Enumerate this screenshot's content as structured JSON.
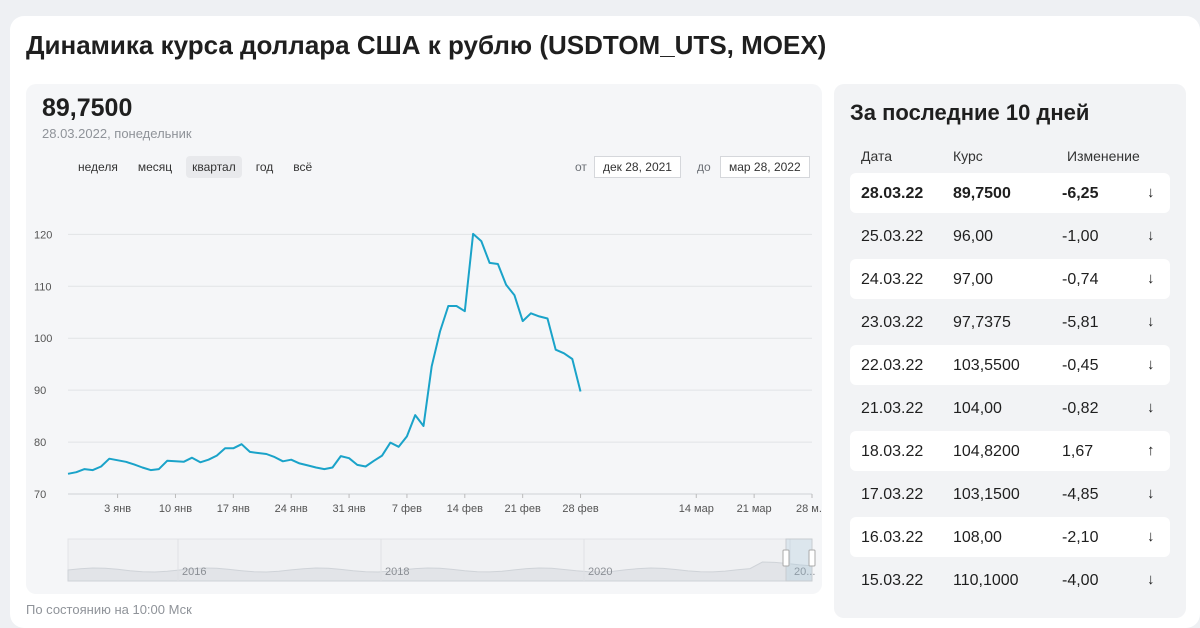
{
  "title": "Динамика курса доллара США к рублю (USDTOM_UTS, MOEX)",
  "current": {
    "value": "89,7500",
    "date": "28.03.2022, понедельник"
  },
  "periods": [
    {
      "label": "неделя",
      "active": false
    },
    {
      "label": "месяц",
      "active": false
    },
    {
      "label": "квартал",
      "active": true
    },
    {
      "label": "год",
      "active": false
    },
    {
      "label": "всё",
      "active": false
    }
  ],
  "range": {
    "from_label": "от",
    "from_value": "дек 28, 2021",
    "to_label": "до",
    "to_value": "мар 28, 2022"
  },
  "footnote": "По состоянию на 10:00 Мск",
  "chart_data": {
    "type": "line",
    "series_color": "#1aa3c9",
    "grid": true,
    "ylim": [
      70,
      122
    ],
    "yticks": [
      70,
      80,
      90,
      100,
      110,
      120
    ],
    "xlim": [
      0,
      90
    ],
    "xticks": [
      {
        "label": "3 янв",
        "day": 6
      },
      {
        "label": "10 янв",
        "day": 13
      },
      {
        "label": "17 янв",
        "day": 20
      },
      {
        "label": "24 янв",
        "day": 27
      },
      {
        "label": "31 янв",
        "day": 34
      },
      {
        "label": "7 фев",
        "day": 41
      },
      {
        "label": "14 фев",
        "day": 48
      },
      {
        "label": "21 фев",
        "day": 55
      },
      {
        "label": "28 фев",
        "day": 62
      },
      {
        "label": "14 мар",
        "day": 76
      },
      {
        "label": "21 мар",
        "day": 83
      },
      {
        "label": "28 м...",
        "day": 90
      }
    ],
    "points": [
      {
        "day": 0,
        "value": 73.9
      },
      {
        "day": 1,
        "value": 74.2
      },
      {
        "day": 2,
        "value": 74.8
      },
      {
        "day": 3,
        "value": 74.6
      },
      {
        "day": 4,
        "value": 75.3
      },
      {
        "day": 5,
        "value": 76.8
      },
      {
        "day": 7,
        "value": 76.2
      },
      {
        "day": 8,
        "value": 75.7
      },
      {
        "day": 9,
        "value": 75.1
      },
      {
        "day": 10,
        "value": 74.6
      },
      {
        "day": 11,
        "value": 74.8
      },
      {
        "day": 12,
        "value": 76.4
      },
      {
        "day": 14,
        "value": 76.2
      },
      {
        "day": 15,
        "value": 77.0
      },
      {
        "day": 16,
        "value": 76.1
      },
      {
        "day": 17,
        "value": 76.6
      },
      {
        "day": 18,
        "value": 77.4
      },
      {
        "day": 19,
        "value": 78.8
      },
      {
        "day": 20,
        "value": 78.8
      },
      {
        "day": 21,
        "value": 79.6
      },
      {
        "day": 22,
        "value": 78.1
      },
      {
        "day": 23,
        "value": 77.9
      },
      {
        "day": 24,
        "value": 77.7
      },
      {
        "day": 25,
        "value": 77.1
      },
      {
        "day": 26,
        "value": 76.3
      },
      {
        "day": 27,
        "value": 76.6
      },
      {
        "day": 28,
        "value": 75.9
      },
      {
        "day": 29,
        "value": 75.5
      },
      {
        "day": 30,
        "value": 75.1
      },
      {
        "day": 31,
        "value": 74.8
      },
      {
        "day": 32,
        "value": 75.1
      },
      {
        "day": 33,
        "value": 77.3
      },
      {
        "day": 34,
        "value": 76.9
      },
      {
        "day": 35,
        "value": 75.6
      },
      {
        "day": 36,
        "value": 75.3
      },
      {
        "day": 37,
        "value": 76.4
      },
      {
        "day": 38,
        "value": 77.4
      },
      {
        "day": 39,
        "value": 79.9
      },
      {
        "day": 40,
        "value": 79.1
      },
      {
        "day": 41,
        "value": 81.1
      },
      {
        "day": 42,
        "value": 85.2
      },
      {
        "day": 43,
        "value": 83.1
      },
      {
        "day": 44,
        "value": 94.6
      },
      {
        "day": 45,
        "value": 101.3
      },
      {
        "day": 46,
        "value": 106.2
      },
      {
        "day": 47,
        "value": 106.2
      },
      {
        "day": 48,
        "value": 105.2
      },
      {
        "day": 49,
        "value": 120.1
      },
      {
        "day": 50,
        "value": 118.7
      },
      {
        "day": 51,
        "value": 114.5
      },
      {
        "day": 52,
        "value": 114.3
      },
      {
        "day": 53,
        "value": 110.3
      },
      {
        "day": 54,
        "value": 108.3
      },
      {
        "day": 55,
        "value": 103.3
      },
      {
        "day": 56,
        "value": 104.8
      },
      {
        "day": 57,
        "value": 104.2
      },
      {
        "day": 58,
        "value": 103.8
      },
      {
        "day": 59,
        "value": 97.8
      },
      {
        "day": 60,
        "value": 97.1
      },
      {
        "day": 61,
        "value": 96.0
      },
      {
        "day": 62,
        "value": 89.75
      }
    ],
    "navigator": {
      "labels": [
        "2016",
        "2018",
        "2020",
        "20..."
      ]
    }
  },
  "side": {
    "title": "За последние 10 дней",
    "columns": [
      "Дата",
      "Курс",
      "Изменение"
    ],
    "rows": [
      {
        "date": "28.03.22",
        "rate": "89,7500",
        "change": "-6,25",
        "dir": "down",
        "arrow": "↓"
      },
      {
        "date": "25.03.22",
        "rate": "96,00",
        "change": "-1,00",
        "dir": "down",
        "arrow": "↓"
      },
      {
        "date": "24.03.22",
        "rate": "97,00",
        "change": "-0,74",
        "dir": "down",
        "arrow": "↓"
      },
      {
        "date": "23.03.22",
        "rate": "97,7375",
        "change": "-5,81",
        "dir": "down",
        "arrow": "↓"
      },
      {
        "date": "22.03.22",
        "rate": "103,5500",
        "change": "-0,45",
        "dir": "down",
        "arrow": "↓"
      },
      {
        "date": "21.03.22",
        "rate": "104,00",
        "change": "-0,82",
        "dir": "down",
        "arrow": "↓"
      },
      {
        "date": "18.03.22",
        "rate": "104,8200",
        "change": "1,67",
        "dir": "up",
        "arrow": "↑"
      },
      {
        "date": "17.03.22",
        "rate": "103,1500",
        "change": "-4,85",
        "dir": "down",
        "arrow": "↓"
      },
      {
        "date": "16.03.22",
        "rate": "108,00",
        "change": "-2,10",
        "dir": "down",
        "arrow": "↓"
      },
      {
        "date": "15.03.22",
        "rate": "110,1000",
        "change": "-4,00",
        "dir": "down",
        "arrow": "↓"
      }
    ]
  }
}
